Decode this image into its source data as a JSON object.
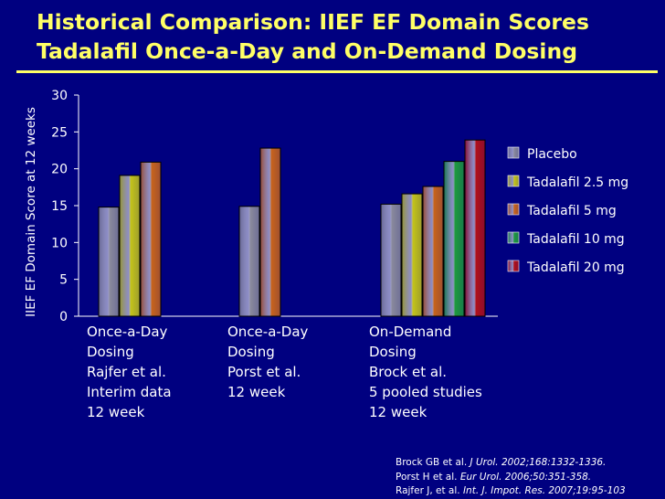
{
  "slide": {
    "title_line1": "Historical Comparison: IIEF EF Domain Scores",
    "title_line2": "Tadalafil Once-a-Day and On-Demand Dosing"
  },
  "colors": {
    "background": "#000080",
    "title": "#ffff66",
    "placebo": "#8a8a9c",
    "tadalafil_2_5": "#c4c41a",
    "tadalafil_5": "#c8641c",
    "tadalafil_10": "#1e9a3e",
    "tadalafil_20": "#b0101a"
  },
  "chart_data": {
    "type": "bar",
    "ylabel": "IIEF EF Domain Score at 12 weeks",
    "ylim": [
      0,
      30
    ],
    "yticks": [
      "0",
      "5",
      "10",
      "15",
      "20",
      "25",
      "30"
    ],
    "legend_position": "right",
    "groups": [
      {
        "label_lines": [
          "Once-a-Day",
          "Dosing",
          "Rajfer et al.",
          "Interim data",
          "12 week"
        ],
        "bars": [
          {
            "series": "Placebo",
            "value": 14.8
          },
          {
            "series": "Tadalafil 2.5 mg",
            "value": 19.1
          },
          {
            "series": "Tadalafil 5 mg",
            "value": 20.9
          }
        ]
      },
      {
        "label_lines": [
          "Once-a-Day",
          "Dosing",
          "Porst et al.",
          "12 week"
        ],
        "bars": [
          {
            "series": "Placebo",
            "value": 14.9
          },
          {
            "series": "Tadalafil 5 mg",
            "value": 22.8
          }
        ]
      },
      {
        "label_lines": [
          "On-Demand",
          "Dosing",
          "Brock et al.",
          "5 pooled studies",
          "12 week"
        ],
        "bars": [
          {
            "series": "Placebo",
            "value": 15.2
          },
          {
            "series": "Tadalafil 2.5 mg",
            "value": 16.6
          },
          {
            "series": "Tadalafil 5 mg",
            "value": 17.6
          },
          {
            "series": "Tadalafil 10 mg",
            "value": 21.0
          },
          {
            "series": "Tadalafil 20 mg",
            "value": 23.9
          }
        ]
      }
    ],
    "series": [
      {
        "name": "Placebo",
        "color": "#8a8a9c"
      },
      {
        "name": "Tadalafil 2.5 mg",
        "color": "#c4c41a"
      },
      {
        "name": "Tadalafil 5 mg",
        "color": "#c8641c"
      },
      {
        "name": "Tadalafil 10 mg",
        "color": "#1e9a3e"
      },
      {
        "name": "Tadalafil 20 mg",
        "color": "#b0101a"
      }
    ]
  },
  "references": [
    {
      "authors": "Brock GB et al. ",
      "citation": "J Urol. 2002;168:1332-1336."
    },
    {
      "authors": "Porst H et al. ",
      "citation": "Eur Urol. 2006;50:351-358."
    },
    {
      "authors": "Rajfer J, et al. ",
      "citation": "Int. J. Impot. Res. 2007;19:95-103"
    }
  ]
}
